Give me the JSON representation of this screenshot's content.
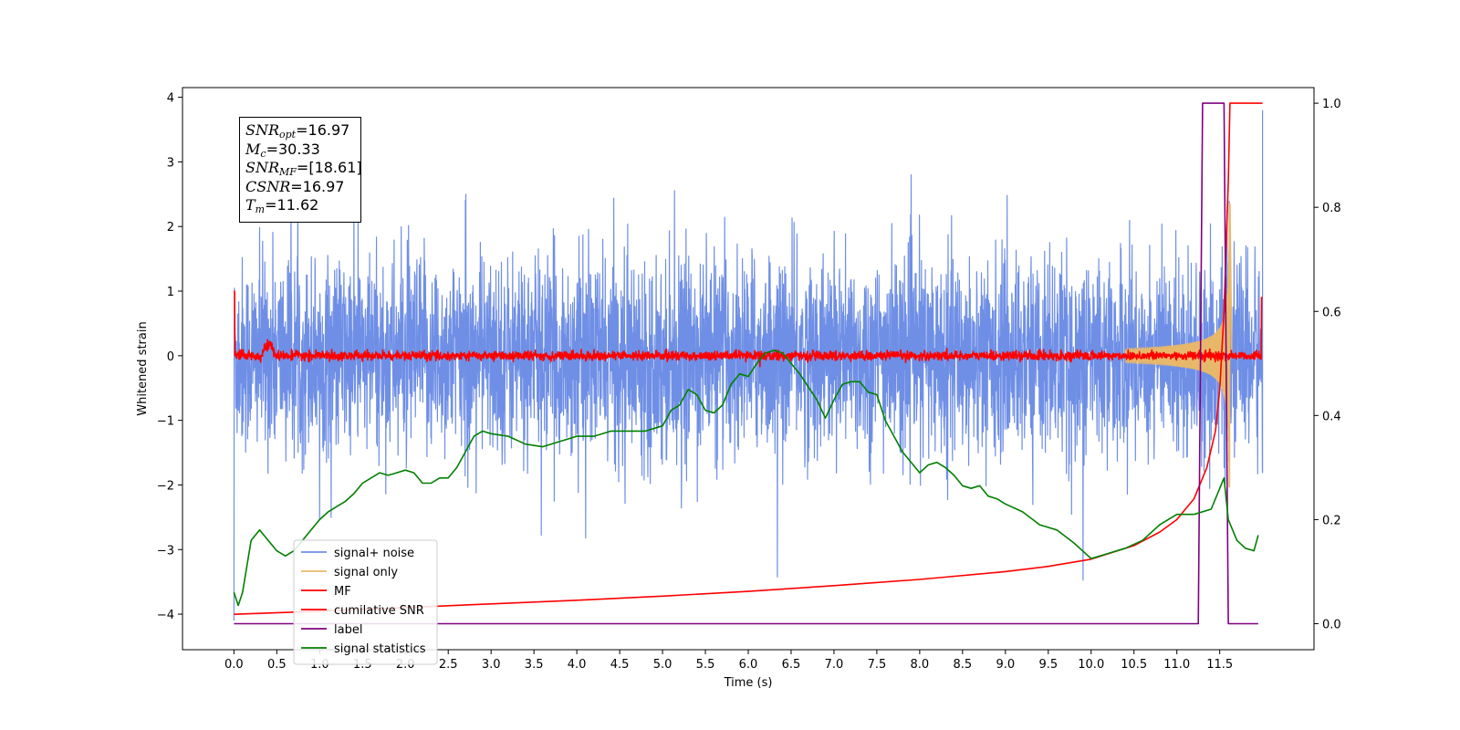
{
  "chart_data": {
    "type": "line",
    "xlabel": "Time (s)",
    "ylabel": "Whitened strain",
    "xlim": [
      -0.6,
      12.6
    ],
    "ylim_left": [
      -4.55,
      4.15
    ],
    "ylim_right": [
      -0.05,
      1.03
    ],
    "xticks": [
      0.0,
      0.5,
      1.0,
      1.5,
      2.0,
      2.5,
      3.0,
      3.5,
      4.0,
      4.5,
      5.0,
      5.5,
      6.0,
      6.5,
      7.0,
      7.5,
      8.0,
      8.5,
      9.0,
      9.5,
      10.0,
      10.5,
      11.0,
      11.5
    ],
    "xtick_labels": [
      "0.0",
      "0.5",
      "1.0",
      "1.5",
      "2.0",
      "2.5",
      "3.0",
      "3.5",
      "4.0",
      "4.5",
      "5.0",
      "5.5",
      "6.0",
      "6.5",
      "7.0",
      "7.5",
      "8.0",
      "8.5",
      "9.0",
      "9.5",
      "10.0",
      "10.5",
      "11.0",
      "11.5"
    ],
    "yticks_left": [
      4,
      3,
      2,
      1,
      0,
      -1,
      -2,
      -3,
      -4
    ],
    "ytick_labels_left": [
      "4",
      "3",
      "2",
      "1",
      "0",
      "−1",
      "−2",
      "−3",
      "−4"
    ],
    "yticks_right": [
      1.0,
      0.8,
      0.6,
      0.4,
      0.2,
      0.0
    ],
    "ytick_labels_right": [
      "1.0",
      "0.8",
      "0.6",
      "0.4",
      "0.2",
      "0.0"
    ],
    "legend_placement": "lower-left",
    "annotation": {
      "lines": [
        {
          "base": "SNR",
          "sub": "opt",
          "value": "=16.97"
        },
        {
          "base": "M",
          "sub": "c",
          "value": "=30.33"
        },
        {
          "base": "SNR",
          "sub": "MF",
          "value": "=[18.61]"
        },
        {
          "base": "CSNR",
          "sub": "",
          "value": "=16.97"
        },
        {
          "base": "T",
          "sub": "m",
          "value": "=11.62"
        }
      ]
    },
    "series": [
      {
        "name": "signal+ noise",
        "axis": "left",
        "color": "#6f8fe6",
        "style": "noise",
        "amplitude_range": [
          -4.1,
          3.8
        ]
      },
      {
        "name": "signal only",
        "axis": "left",
        "color": "#e8b86a",
        "style": "chirp",
        "peak_time": 11.62,
        "peak_amplitude": 2.4
      },
      {
        "name": "MF",
        "axis": "left",
        "color": "#ff0000",
        "style": "noise-small",
        "x": [
          0.0,
          0.01,
          0.05,
          0.3,
          0.35,
          0.4,
          0.45,
          0.5,
          11.98,
          12.0
        ],
        "y": [
          1.0,
          0.0,
          0.0,
          0.0,
          0.2,
          0.28,
          0.1,
          0.0,
          0.0,
          0.9
        ]
      },
      {
        "name": "cumilative SNR",
        "axis": "right",
        "color": "#ff0000",
        "x": [
          0.0,
          1.0,
          2.0,
          3.0,
          4.0,
          5.0,
          6.0,
          7.0,
          8.0,
          9.0,
          9.5,
          10.0,
          10.5,
          10.8,
          11.0,
          11.2,
          11.35,
          11.45,
          11.5,
          11.55,
          11.6,
          11.62,
          11.65,
          12.0
        ],
        "y": [
          0.018,
          0.024,
          0.031,
          0.038,
          0.045,
          0.053,
          0.062,
          0.073,
          0.085,
          0.1,
          0.11,
          0.124,
          0.15,
          0.176,
          0.2,
          0.24,
          0.3,
          0.37,
          0.45,
          0.6,
          0.85,
          1.0,
          1.0,
          1.0
        ]
      },
      {
        "name": "label",
        "axis": "right",
        "color": "#800080",
        "x": [
          0.0,
          11.25,
          11.3,
          11.55,
          11.6,
          11.95
        ],
        "y": [
          0.0,
          0.0,
          1.0,
          1.0,
          0.0,
          0.0
        ]
      },
      {
        "name": "signal statistics",
        "axis": "right",
        "color": "#008000",
        "x": [
          0.0,
          0.05,
          0.1,
          0.2,
          0.3,
          0.4,
          0.5,
          0.6,
          0.7,
          0.8,
          0.9,
          1.0,
          1.1,
          1.2,
          1.3,
          1.4,
          1.5,
          1.6,
          1.7,
          1.8,
          1.9,
          2.0,
          2.1,
          2.2,
          2.3,
          2.4,
          2.5,
          2.6,
          2.7,
          2.8,
          2.9,
          3.0,
          3.2,
          3.4,
          3.6,
          3.8,
          4.0,
          4.2,
          4.4,
          4.6,
          4.8,
          5.0,
          5.1,
          5.2,
          5.3,
          5.4,
          5.5,
          5.6,
          5.7,
          5.8,
          5.9,
          6.0,
          6.1,
          6.2,
          6.3,
          6.4,
          6.5,
          6.6,
          6.7,
          6.8,
          6.9,
          7.0,
          7.1,
          7.2,
          7.3,
          7.4,
          7.5,
          7.6,
          7.7,
          7.8,
          7.9,
          8.0,
          8.1,
          8.2,
          8.3,
          8.4,
          8.5,
          8.6,
          8.7,
          8.8,
          8.9,
          9.0,
          9.2,
          9.4,
          9.6,
          9.8,
          10.0,
          10.2,
          10.4,
          10.6,
          10.8,
          11.0,
          11.2,
          11.4,
          11.55,
          11.6,
          11.7,
          11.8,
          11.9,
          11.95
        ],
        "y": [
          0.06,
          0.035,
          0.06,
          0.16,
          0.18,
          0.16,
          0.14,
          0.13,
          0.14,
          0.16,
          0.18,
          0.2,
          0.215,
          0.225,
          0.235,
          0.25,
          0.27,
          0.28,
          0.29,
          0.285,
          0.29,
          0.295,
          0.29,
          0.27,
          0.27,
          0.28,
          0.28,
          0.3,
          0.33,
          0.36,
          0.37,
          0.365,
          0.36,
          0.345,
          0.34,
          0.35,
          0.36,
          0.36,
          0.37,
          0.37,
          0.37,
          0.38,
          0.41,
          0.42,
          0.45,
          0.44,
          0.41,
          0.405,
          0.42,
          0.46,
          0.48,
          0.475,
          0.5,
          0.52,
          0.525,
          0.52,
          0.5,
          0.48,
          0.455,
          0.43,
          0.395,
          0.43,
          0.46,
          0.465,
          0.465,
          0.445,
          0.44,
          0.39,
          0.36,
          0.33,
          0.31,
          0.29,
          0.305,
          0.31,
          0.3,
          0.285,
          0.265,
          0.26,
          0.265,
          0.245,
          0.24,
          0.23,
          0.215,
          0.19,
          0.18,
          0.155,
          0.125,
          0.135,
          0.145,
          0.16,
          0.19,
          0.21,
          0.21,
          0.22,
          0.28,
          0.2,
          0.16,
          0.145,
          0.14,
          0.17
        ]
      }
    ]
  }
}
